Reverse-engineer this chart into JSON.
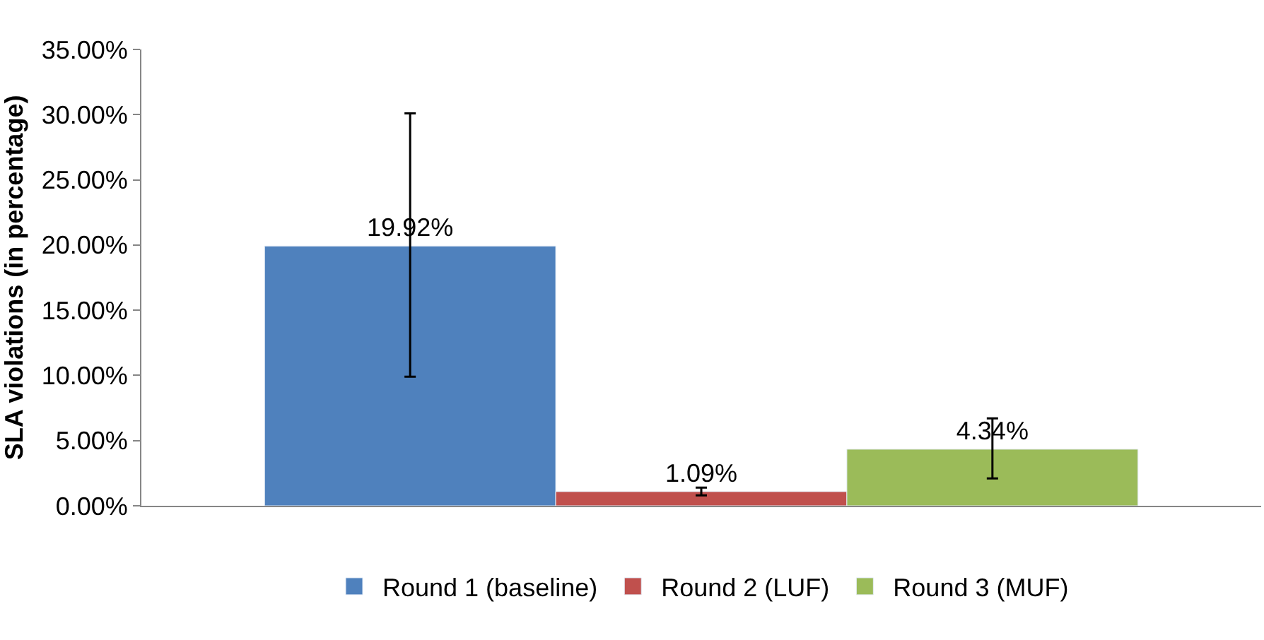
{
  "chart_data": {
    "type": "bar",
    "ylabel": "SLA violations (in percentage)",
    "categories": [
      null
    ],
    "series": [
      {
        "name": "Round 1 (baseline)",
        "color": "#4f81bd",
        "values": [
          19.92
        ],
        "value_labels": [
          "19.92%"
        ],
        "errors": [
          [
            9.9,
            30.1
          ]
        ]
      },
      {
        "name": "Round 2 (LUF)",
        "color": "#c0504d",
        "values": [
          1.09
        ],
        "value_labels": [
          "1.09%"
        ],
        "errors": [
          [
            0.8,
            1.4
          ]
        ]
      },
      {
        "name": "Round 3 (MUF)",
        "color": "#9bbb59",
        "values": [
          4.34
        ],
        "value_labels": [
          "4.34%"
        ],
        "errors": [
          [
            2.1,
            6.7
          ]
        ]
      }
    ],
    "ylim": [
      0,
      35
    ],
    "yticks": [
      {
        "value": 0,
        "label": "0.00%"
      },
      {
        "value": 5,
        "label": "5.00%"
      },
      {
        "value": 10,
        "label": "10.00%"
      },
      {
        "value": 15,
        "label": "15.00%"
      },
      {
        "value": 20,
        "label": "20.00%"
      },
      {
        "value": 25,
        "label": "25.00%"
      },
      {
        "value": 30,
        "label": "30.00%"
      },
      {
        "value": 35,
        "label": "35.00%"
      }
    ],
    "legend": "bottom"
  }
}
